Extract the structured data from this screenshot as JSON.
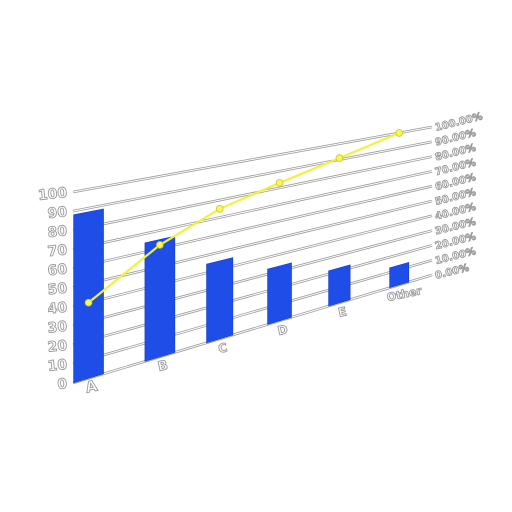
{
  "chart_data": {
    "type": "bar",
    "title": "",
    "xlabel": "",
    "ylabel": "",
    "categories": [
      "A",
      "B",
      "C",
      "D",
      "E",
      "Other"
    ],
    "series": [
      {
        "values": [
          88,
          65,
          45,
          33,
          22,
          13
        ]
      },
      {
        "values": [
          40,
          62,
          75,
          83,
          91,
          100
        ]
      }
    ],
    "ylim": [
      0,
      100
    ],
    "y_ticks": [
      "0",
      "10",
      "20",
      "30",
      "40",
      "50",
      "60",
      "70",
      "80",
      "90",
      "100"
    ],
    "y2lim": [
      0,
      100
    ],
    "y2_ticks": [
      "0.00%",
      "10.00%",
      "20.00%",
      "30.00%",
      "40.00%",
      "50.00%",
      "60.00%",
      "70.00%",
      "80.00%",
      "90.00%",
      "100.00%"
    ],
    "grid": true,
    "legend": "none",
    "colors": {
      "bar": "#1f4de8",
      "line": "#f2f23a",
      "marker": "#f7f75a",
      "grid": "#9a9a9a",
      "label_outline": "#9a9a9a"
    }
  }
}
